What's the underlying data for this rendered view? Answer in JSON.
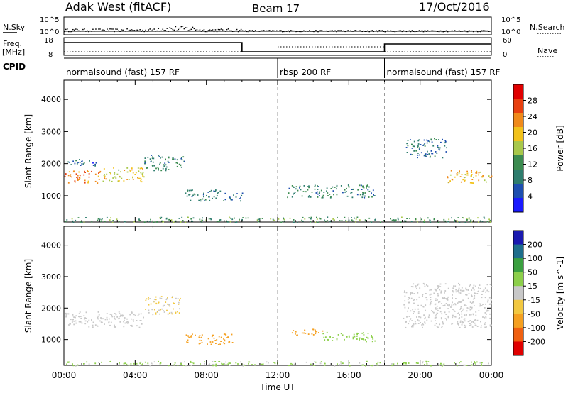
{
  "header": {
    "station": "Adak West (fitACF)",
    "beam": "Beam 17",
    "date": "17/Oct/2016"
  },
  "strip_labels": {
    "nsky": "N.Sky",
    "nsearch": "N.Search",
    "freq": "Freq.",
    "freq_unit": "[MHz]",
    "nave": "Nave",
    "cpid": "CPID"
  },
  "strip_ticks": {
    "nsky_left": [
      "10^5",
      "10^0"
    ],
    "nsearch_right": [
      "10^5",
      "10^0"
    ],
    "freq_left": [
      "18",
      "8"
    ],
    "nave_right": [
      "60",
      "0"
    ]
  },
  "cpid_segments": [
    {
      "label": "normalsound (fast) 157 RF",
      "start": 0,
      "end": 12
    },
    {
      "label": "rbsp 200 RF",
      "start": 12,
      "end": 18
    },
    {
      "label": "normalsound (fast) 157 RF",
      "start": 18,
      "end": 24
    }
  ],
  "colors": {
    "power_scale": [
      "#1a1aff",
      "#1e4fb0",
      "#2e7d6e",
      "#3c8c50",
      "#a8c84a",
      "#f2c21a",
      "#f08a1a",
      "#e84010",
      "#e00000"
    ],
    "velocity_scale": [
      "#e00000",
      "#f06010",
      "#f5a020",
      "#f2c840",
      "#c8c8c8",
      "#8ccf4a",
      "#3aa040",
      "#1e6e8c",
      "#1a1ab0"
    ]
  },
  "chart_data": [
    {
      "type": "heatmap",
      "name": "power",
      "x_label": "",
      "ylabel": "Slant Range [km]",
      "xlim": [
        0,
        24
      ],
      "ylim": [
        180,
        4600
      ],
      "yticks": [
        1000,
        2000,
        3000,
        4000
      ],
      "colorbar": {
        "label": "Power [dB]",
        "ticks": [
          4,
          8,
          12,
          16,
          20,
          24,
          28
        ],
        "range": [
          0,
          32
        ]
      },
      "scatter_regions": [
        {
          "t0": 0.0,
          "t1": 2.0,
          "r0": 1400,
          "r1": 1800,
          "value": 24
        },
        {
          "t0": 2.0,
          "t1": 4.5,
          "r0": 1450,
          "r1": 1900,
          "value": 18
        },
        {
          "t0": 4.5,
          "t1": 6.8,
          "r0": 1800,
          "r1": 2300,
          "value": 10
        },
        {
          "t0": 0.2,
          "t1": 1.8,
          "r0": 1950,
          "r1": 2200,
          "value": 7
        },
        {
          "t0": 6.8,
          "t1": 9.0,
          "r0": 850,
          "r1": 1200,
          "value": 9
        },
        {
          "t0": 9.0,
          "t1": 10.0,
          "r0": 850,
          "r1": 1100,
          "value": 6
        },
        {
          "t0": 12.5,
          "t1": 17.5,
          "r0": 950,
          "r1": 1350,
          "value": 10
        },
        {
          "t0": 19.2,
          "t1": 21.5,
          "r0": 2200,
          "r1": 2800,
          "value": 8
        },
        {
          "t0": 21.5,
          "t1": 24.0,
          "r0": 1400,
          "r1": 1800,
          "value": 20
        },
        {
          "t0": 0.0,
          "t1": 24.0,
          "r0": 180,
          "r1": 350,
          "value": 12
        }
      ]
    },
    {
      "type": "heatmap",
      "name": "velocity",
      "xlabel": "Time UT",
      "ylabel": "Slant Range [km]",
      "xlim": [
        0,
        24
      ],
      "ylim": [
        180,
        4600
      ],
      "xticks": [
        "00:00",
        "04:00",
        "08:00",
        "12:00",
        "16:00",
        "20:00",
        "00:00"
      ],
      "yticks": [
        1000,
        2000,
        3000,
        4000
      ],
      "colorbar": {
        "label": "Velocity [m s^-1]",
        "ticks": [
          200,
          100,
          50,
          15,
          -15,
          -50,
          -100,
          -200
        ]
      },
      "scatter_regions": [
        {
          "t0": 0.0,
          "t1": 4.5,
          "r0": 1400,
          "r1": 1900,
          "value": 0
        },
        {
          "t0": 4.5,
          "t1": 6.5,
          "r0": 1800,
          "r1": 2400,
          "value": -15
        },
        {
          "t0": 6.8,
          "t1": 9.5,
          "r0": 850,
          "r1": 1200,
          "value": -80
        },
        {
          "t0": 12.5,
          "t1": 14.5,
          "r0": 1150,
          "r1": 1350,
          "value": -60
        },
        {
          "t0": 14.5,
          "t1": 17.5,
          "r0": 950,
          "r1": 1250,
          "value": 30
        },
        {
          "t0": 19.0,
          "t1": 24.0,
          "r0": 1400,
          "r1": 2800,
          "value": 0
        },
        {
          "t0": 0.0,
          "t1": 24.0,
          "r0": 180,
          "r1": 320,
          "value": 20
        }
      ]
    }
  ]
}
